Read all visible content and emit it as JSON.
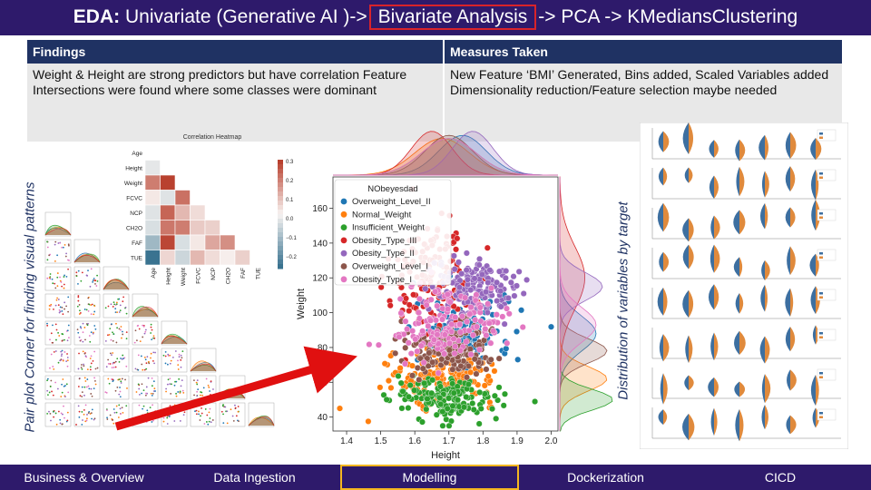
{
  "header": {
    "eda_label": "EDA:",
    "pre": "Univariate (Generative AI )->",
    "highlight": "Bivariate Analysis",
    "post": "-> PCA -> KMediansClustering"
  },
  "findings_table": {
    "col1_header": "Findings",
    "col2_header": "Measures Taken",
    "findings": "Weight & Height are strong predictors but have correlation Feature Intersections were found where some classes were dominant",
    "measures_line1": "New Feature ‘BMI’ Generated, Bins added, Scaled Variables added",
    "measures_line2": "Dimensionality reduction/Feature selection maybe needed"
  },
  "left_caption": "Pair plot Corner for finding visual patterns",
  "right_caption": "Distribution of variables by target",
  "heatmap": {
    "title": "Correlation Heatmap",
    "labels": [
      "Age",
      "Height",
      "Weight",
      "FCVC",
      "NCP",
      "CH2O",
      "FAF",
      "TUE"
    ],
    "colorbar_ticks": [
      "0.3",
      "0.2",
      "0.1",
      "0.0",
      "−0.1",
      "−0.2"
    ],
    "colors": {
      "pos": "#b9412f",
      "neg": "#3a7390"
    }
  },
  "chart_data": {
    "type": "scatter",
    "xlabel": "Height",
    "ylabel": "Weight",
    "xlim": [
      1.36,
      2.02
    ],
    "ylim": [
      32,
      178
    ],
    "x_ticks": [
      "1.4",
      "1.5",
      "1.6",
      "1.7",
      "1.8",
      "1.9",
      "2.0"
    ],
    "y_ticks": [
      "40",
      "60",
      "80",
      "100",
      "120",
      "140",
      "160"
    ],
    "legend_title": "NObeyesdad",
    "legend_position": "top-left",
    "series": [
      {
        "name": "Overweight_Level_II",
        "color": "#1f77b4",
        "cx": 1.74,
        "cy": 88,
        "sx": 0.07,
        "sy": 10
      },
      {
        "name": "Normal_Weight",
        "color": "#ff7f0e",
        "cx": 1.68,
        "cy": 62,
        "sx": 0.08,
        "sy": 7
      },
      {
        "name": "Insufficient_Weight",
        "color": "#2ca02c",
        "cx": 1.7,
        "cy": 50,
        "sx": 0.08,
        "sy": 6
      },
      {
        "name": "Obesity_Type_III",
        "color": "#d62728",
        "cx": 1.65,
        "cy": 120,
        "sx": 0.06,
        "sy": 18
      },
      {
        "name": "Obesity_Type_II",
        "color": "#9467bd",
        "cx": 1.77,
        "cy": 115,
        "sx": 0.06,
        "sy": 8
      },
      {
        "name": "Overweight_Level_I",
        "color": "#8c564b",
        "cx": 1.7,
        "cy": 78,
        "sx": 0.07,
        "sy": 7
      },
      {
        "name": "Obesity_Type_I",
        "color": "#e377c2",
        "cx": 1.7,
        "cy": 93,
        "sx": 0.08,
        "sy": 10
      }
    ]
  },
  "nav": [
    "Business & Overview",
    "Data Ingestion",
    "Modelling",
    "Dockerization",
    "CICD"
  ],
  "nav_selected": "Modelling"
}
